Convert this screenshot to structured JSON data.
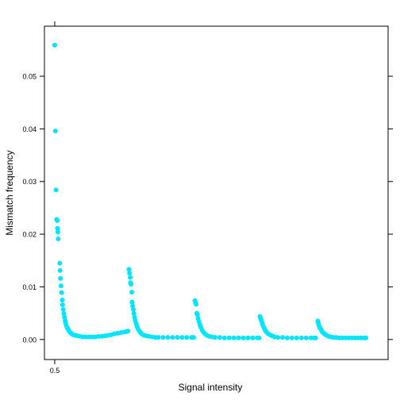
{
  "chart_data": {
    "type": "scatter",
    "title": "",
    "xlabel": "Signal intensity",
    "ylabel": "Mismatch frequency",
    "xlim": [
      0,
      100
    ],
    "ylim": [
      -0.0038,
      0.0595
    ],
    "x_ticks": [
      {
        "value": 1,
        "label": "0.5"
      }
    ],
    "y_ticks": [
      {
        "value": 0.0,
        "label": "0.00"
      },
      {
        "value": 0.01,
        "label": "0.01"
      },
      {
        "value": 0.02,
        "label": "0.02"
      },
      {
        "value": 0.03,
        "label": "0.03"
      },
      {
        "value": 0.04,
        "label": "0.04"
      },
      {
        "value": 0.05,
        "label": "0.05"
      }
    ],
    "grid": false,
    "legend": "none",
    "point_color": "#00E5FF",
    "series": [
      {
        "values": [
          [
            1.0,
            0.0559
          ],
          [
            1.2,
            0.0396
          ],
          [
            1.4,
            0.0284
          ],
          [
            1.6,
            0.0228
          ],
          [
            1.8,
            0.0226
          ],
          [
            1.9,
            0.0211
          ],
          [
            2.0,
            0.0204
          ],
          [
            2.1,
            0.0191
          ],
          [
            2.6,
            0.0145
          ],
          [
            2.7,
            0.0131
          ],
          [
            2.8,
            0.0116
          ],
          [
            3.0,
            0.0102
          ],
          [
            3.2,
            0.0089
          ],
          [
            3.4,
            0.0075
          ],
          [
            3.5,
            0.0066
          ],
          [
            3.7,
            0.0057
          ],
          [
            3.9,
            0.0049
          ],
          [
            4.1,
            0.0042
          ],
          [
            4.3,
            0.0036
          ],
          [
            4.5,
            0.0031
          ],
          [
            4.7,
            0.0026
          ],
          [
            5.0,
            0.0022
          ],
          [
            5.3,
            0.0019
          ],
          [
            5.6,
            0.0016
          ],
          [
            6.0,
            0.0013
          ],
          [
            6.4,
            0.0011
          ],
          [
            6.9,
            0.0009
          ],
          [
            7.5,
            0.0008
          ],
          [
            8.2,
            0.0007
          ],
          [
            9.0,
            0.0006
          ],
          [
            10.0,
            0.0005
          ],
          [
            11.0,
            0.0005
          ],
          [
            12.0,
            0.0005
          ],
          [
            13.0,
            0.0005
          ],
          [
            14.0,
            0.0005
          ],
          [
            15.0,
            0.0006
          ],
          [
            16.0,
            0.0006
          ],
          [
            17.0,
            0.0007
          ],
          [
            18.0,
            0.0008
          ],
          [
            19.0,
            0.0009
          ],
          [
            20.0,
            0.0011
          ],
          [
            21.0,
            0.0012
          ],
          [
            22.0,
            0.0013
          ],
          [
            23.0,
            0.0014
          ],
          [
            23.8,
            0.0015
          ],
          [
            24.3,
            0.0016
          ],
          [
            24.6,
            0.0133
          ],
          [
            24.8,
            0.0126
          ],
          [
            25.0,
            0.0118
          ],
          [
            25.1,
            0.0108
          ],
          [
            25.3,
            0.0105
          ],
          [
            25.5,
            0.009
          ],
          [
            25.6,
            0.0071
          ],
          [
            25.8,
            0.0064
          ],
          [
            26.0,
            0.0057
          ],
          [
            26.2,
            0.0049
          ],
          [
            26.4,
            0.0042
          ],
          [
            26.6,
            0.0036
          ],
          [
            26.9,
            0.003
          ],
          [
            27.2,
            0.0025
          ],
          [
            27.5,
            0.002
          ],
          [
            27.9,
            0.0016
          ],
          [
            28.3,
            0.0013
          ],
          [
            28.8,
            0.001
          ],
          [
            29.4,
            0.0008
          ],
          [
            30.1,
            0.0007
          ],
          [
            31.0,
            0.0006
          ],
          [
            32.0,
            0.0005
          ],
          [
            33.0,
            0.0004
          ],
          [
            34.0,
            0.0004
          ],
          [
            35.5,
            0.0004
          ],
          [
            37.0,
            0.0004
          ],
          [
            38.5,
            0.0004
          ],
          [
            40.0,
            0.0004
          ],
          [
            41.5,
            0.0004
          ],
          [
            43.0,
            0.0004
          ],
          [
            44.5,
            0.0004
          ],
          [
            45.2,
            0.0004
          ],
          [
            45.6,
            0.0074
          ],
          [
            45.8,
            0.007
          ],
          [
            46.0,
            0.0067
          ],
          [
            46.2,
            0.005
          ],
          [
            46.4,
            0.0047
          ],
          [
            46.6,
            0.004
          ],
          [
            46.9,
            0.0034
          ],
          [
            47.2,
            0.0028
          ],
          [
            47.5,
            0.0023
          ],
          [
            47.9,
            0.0018
          ],
          [
            48.3,
            0.0014
          ],
          [
            48.8,
            0.0011
          ],
          [
            49.4,
            0.0008
          ],
          [
            50.1,
            0.0006
          ],
          [
            51.0,
            0.0005
          ],
          [
            52.0,
            0.0004
          ],
          [
            53.5,
            0.0004
          ],
          [
            55.0,
            0.0003
          ],
          [
            56.5,
            0.0003
          ],
          [
            58.0,
            0.0003
          ],
          [
            59.5,
            0.0003
          ],
          [
            61.0,
            0.0003
          ],
          [
            62.5,
            0.0003
          ],
          [
            64.0,
            0.0003
          ],
          [
            65.5,
            0.0003
          ],
          [
            66.0,
            0.0003
          ],
          [
            66.3,
            0.0044
          ],
          [
            66.5,
            0.004
          ],
          [
            66.7,
            0.0037
          ],
          [
            66.9,
            0.0033
          ],
          [
            67.1,
            0.0029
          ],
          [
            67.4,
            0.0025
          ],
          [
            67.7,
            0.0021
          ],
          [
            68.0,
            0.0017
          ],
          [
            68.4,
            0.0014
          ],
          [
            68.9,
            0.0011
          ],
          [
            69.5,
            0.0009
          ],
          [
            70.2,
            0.0007
          ],
          [
            71.0,
            0.0005
          ],
          [
            72.0,
            0.0004
          ],
          [
            73.5,
            0.0004
          ],
          [
            75.0,
            0.0003
          ],
          [
            76.5,
            0.0003
          ],
          [
            78.0,
            0.0003
          ],
          [
            79.5,
            0.0003
          ],
          [
            81.0,
            0.0003
          ],
          [
            82.5,
            0.0003
          ],
          [
            83.5,
            0.0003
          ],
          [
            84.0,
            0.0003
          ],
          [
            84.7,
            0.0035
          ],
          [
            84.9,
            0.0031
          ],
          [
            85.1,
            0.0026
          ],
          [
            85.3,
            0.0023
          ],
          [
            85.6,
            0.002
          ],
          [
            85.9,
            0.0017
          ],
          [
            86.2,
            0.0014
          ],
          [
            86.6,
            0.0012
          ],
          [
            87.0,
            0.001
          ],
          [
            87.5,
            0.0008
          ],
          [
            88.1,
            0.0006
          ],
          [
            88.8,
            0.0005
          ],
          [
            89.6,
            0.0004
          ],
          [
            90.5,
            0.0004
          ],
          [
            91.5,
            0.0003
          ],
          [
            92.5,
            0.0003
          ],
          [
            93.5,
            0.0003
          ],
          [
            94.5,
            0.0003
          ],
          [
            95.5,
            0.0003
          ],
          [
            96.5,
            0.0003
          ],
          [
            97.5,
            0.0003
          ],
          [
            98.5,
            0.0003
          ],
          [
            99.5,
            0.0003
          ],
          [
            100.0,
            0.0003
          ]
        ]
      }
    ]
  }
}
